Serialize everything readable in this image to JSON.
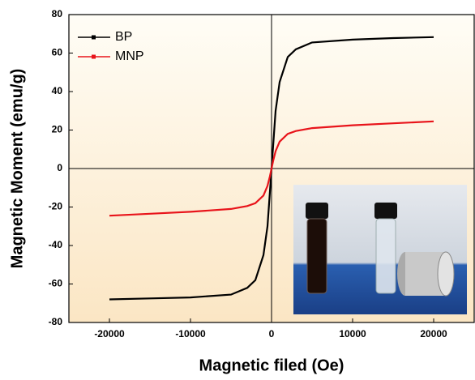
{
  "chart_data": {
    "type": "line",
    "x_label": "Magnetic filed (Oe)",
    "y_label": "Magnetic Moment (emu/g)",
    "x": [
      -20000,
      -15000,
      -10000,
      -5000,
      -3000,
      -2000,
      -1000,
      -500,
      -200,
      0,
      200,
      500,
      1000,
      2000,
      3000,
      5000,
      10000,
      15000,
      20000
    ],
    "series": [
      {
        "name": "BP",
        "color": "#000000",
        "values": [
          -68,
          -67.5,
          -67,
          -65.5,
          -62,
          -58,
          -45,
          -30,
          -12,
          0,
          12,
          30,
          45,
          58,
          62,
          65.5,
          67,
          67.8,
          68.3
        ]
      },
      {
        "name": "MNP",
        "color": "#e8141b",
        "values": [
          -24.5,
          -23.5,
          -22.5,
          -21,
          -19.5,
          -18,
          -14,
          -9,
          -4,
          0,
          4,
          9,
          14,
          18,
          19.5,
          21,
          22.5,
          23.5,
          24.5
        ]
      }
    ],
    "xlim": [
      -25000,
      25000
    ],
    "xticks": [
      -20000,
      -10000,
      0,
      10000,
      20000
    ],
    "ylim": [
      -80,
      80
    ],
    "yticks": [
      -80,
      -60,
      -40,
      -20,
      0,
      20,
      40,
      60,
      80
    ],
    "legend": "upper-left"
  }
}
